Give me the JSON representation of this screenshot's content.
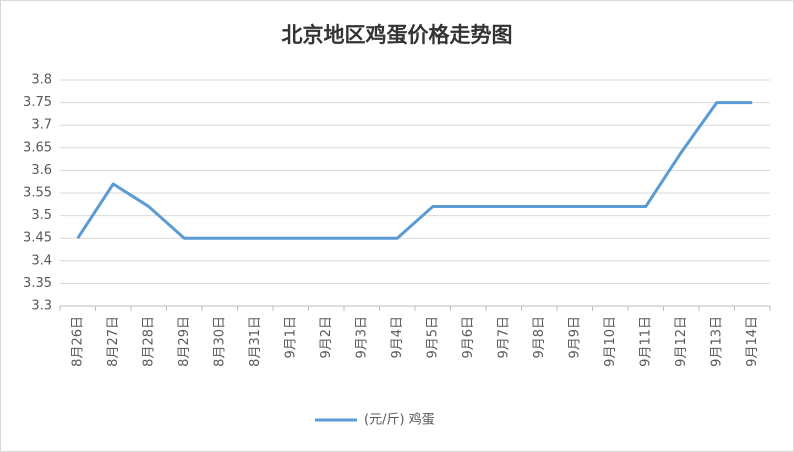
{
  "chart_data": {
    "type": "line",
    "title": "北京地区鸡蛋价格走势图",
    "categories": [
      "8月26日",
      "8月27日",
      "8月28日",
      "8月29日",
      "8月30日",
      "8月31日",
      "9月1日",
      "9月2日",
      "9月3日",
      "9月4日",
      "9月5日",
      "9月6日",
      "9月7日",
      "9月8日",
      "9月9日",
      "9月10日",
      "9月11日",
      "9月12日",
      "9月13日",
      "9月14日"
    ],
    "series": [
      {
        "name": "(元/斤) 鸡蛋",
        "color": "#5b9bd5",
        "values": [
          3.45,
          3.57,
          3.52,
          3.45,
          3.45,
          3.45,
          3.45,
          3.45,
          3.45,
          3.45,
          3.52,
          3.52,
          3.52,
          3.52,
          3.52,
          3.52,
          3.52,
          3.64,
          3.75,
          3.75
        ]
      }
    ],
    "ylim": [
      3.3,
      3.8
    ],
    "yticks": [
      3.3,
      3.35,
      3.4,
      3.45,
      3.5,
      3.55,
      3.6,
      3.65,
      3.7,
      3.75,
      3.8
    ],
    "grid": true,
    "legend": "bottom"
  }
}
